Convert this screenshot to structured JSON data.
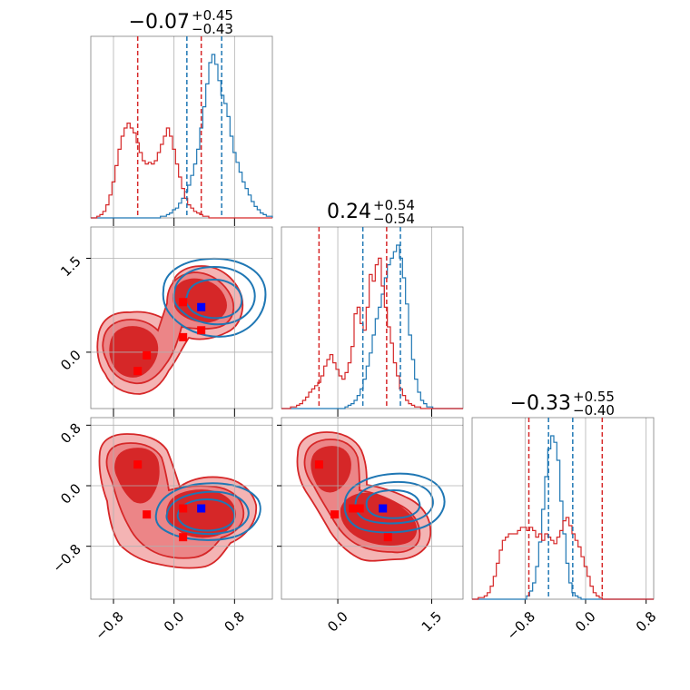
{
  "colors": {
    "red": "#d62728",
    "blue": "#1f77b4",
    "marker_blue": "#0000ff",
    "marker_red": "#ff0000"
  },
  "chart_data": {
    "type": "corner",
    "grid": true,
    "parameters": [
      {
        "title": {
          "value": "−0.07",
          "plus": "+0.45",
          "minus": "−0.43"
        },
        "range": [
          -1.1,
          1.3
        ],
        "ticks": [
          -0.8,
          0.0,
          0.8
        ],
        "tick_labels": [
          "−0.8",
          "0.0",
          "0.8"
        ]
      },
      {
        "title": {
          "value": "0.24",
          "plus": "+0.54",
          "minus": "−0.54"
        },
        "range": [
          -0.9,
          2.0
        ],
        "ticks": [
          0.0,
          1.5
        ],
        "tick_labels": [
          "0.0",
          "1.5"
        ]
      },
      {
        "title": {
          "value": "−0.33",
          "plus": "+0.55",
          "minus": "−0.40"
        },
        "range": [
          -1.5,
          0.9
        ],
        "ticks": [
          -0.8,
          0.0,
          0.8
        ],
        "tick_labels": [
          "−0.8",
          "0.0",
          "0.8"
        ]
      }
    ],
    "quantiles": {
      "red": [
        [
          -0.48,
          0.36
        ],
        [
          -0.3,
          0.78
        ],
        [
          -0.75,
          0.22
        ]
      ],
      "blue": [
        [
          0.17,
          0.63
        ],
        [
          0.4,
          1.0
        ],
        [
          -0.49,
          -0.17
        ]
      ]
    },
    "markers": {
      "blue": [
        0.36,
        0.72,
        -0.3
      ],
      "red": [
        [
          -0.48,
          -0.3,
          0.28
        ],
        [
          -0.36,
          -0.05,
          -0.38
        ],
        [
          0.12,
          0.8,
          -0.68
        ],
        [
          0.36,
          0.35,
          -0.3
        ],
        [
          0.12,
          0.24,
          -0.3
        ]
      ]
    },
    "series": [
      {
        "color": "blue",
        "hist": [
          [
            0,
            0,
            0,
            0,
            0,
            0,
            0,
            0,
            0,
            0,
            0,
            0,
            0,
            0,
            0,
            0,
            0,
            0,
            0,
            0,
            0,
            0,
            0,
            1,
            1,
            2,
            3,
            5,
            6,
            9,
            12,
            16,
            20,
            26,
            33,
            42,
            55,
            68,
            82,
            95,
            100,
            94,
            84,
            75,
            70,
            62,
            50,
            40,
            34,
            28,
            22,
            18,
            14,
            10,
            7,
            5,
            3,
            2,
            1,
            1
          ],
          [
            0,
            0,
            0,
            0,
            0,
            0,
            0,
            0,
            0,
            0,
            0,
            0,
            0,
            0,
            0,
            0,
            0,
            0,
            0,
            0,
            0,
            1,
            2,
            3,
            5,
            8,
            12,
            18,
            26,
            34,
            45,
            55,
            62,
            70,
            80,
            88,
            92,
            96,
            100,
            92,
            80,
            64,
            45,
            30,
            18,
            10,
            5,
            3,
            1,
            1,
            0,
            0,
            0,
            0,
            0,
            0,
            0,
            0,
            0,
            0
          ],
          [
            0,
            0,
            0,
            0,
            0,
            0,
            0,
            0,
            0,
            0,
            0,
            0,
            0,
            0,
            0,
            0,
            0,
            0,
            2,
            5,
            10,
            20,
            35,
            55,
            75,
            92,
            100,
            96,
            85,
            60,
            40,
            22,
            10,
            4,
            2,
            1,
            0,
            0,
            0,
            0,
            0,
            0,
            0,
            0,
            0,
            0,
            0,
            0,
            0,
            0,
            0,
            0,
            0,
            0,
            0,
            0,
            0,
            0,
            0,
            0
          ]
        ]
      },
      {
        "color": "red",
        "hist": [
          [
            0,
            0,
            1,
            2,
            4,
            8,
            14,
            22,
            32,
            42,
            50,
            55,
            58,
            55,
            52,
            46,
            40,
            35,
            33,
            34,
            33,
            35,
            40,
            45,
            50,
            55,
            50,
            42,
            33,
            25,
            18,
            12,
            8,
            6,
            4,
            3,
            2,
            1,
            1,
            0,
            0,
            0,
            0,
            0,
            0,
            0,
            0,
            0,
            0,
            0,
            0,
            0,
            0,
            0,
            0,
            0,
            0,
            0,
            0,
            0
          ],
          [
            0,
            0,
            0,
            1,
            1,
            2,
            3,
            5,
            7,
            10,
            12,
            14,
            16,
            20,
            26,
            30,
            33,
            28,
            24,
            20,
            18,
            22,
            28,
            38,
            58,
            62,
            52,
            48,
            62,
            82,
            78,
            88,
            92,
            75,
            62,
            50,
            40,
            28,
            20,
            12,
            8,
            5,
            3,
            2,
            1,
            1,
            0,
            0,
            0,
            0,
            0,
            0,
            0,
            0,
            0,
            0,
            0,
            0,
            0,
            0
          ],
          [
            0,
            0,
            1,
            1,
            2,
            4,
            8,
            14,
            22,
            30,
            36,
            38,
            40,
            40,
            40,
            42,
            44,
            44,
            42,
            44,
            42,
            38,
            40,
            36,
            40,
            38,
            36,
            34,
            38,
            42,
            48,
            50,
            45,
            40,
            36,
            32,
            26,
            20,
            14,
            8,
            4,
            2,
            1,
            0,
            0,
            0,
            0,
            0,
            0,
            0,
            0,
            0,
            0,
            0,
            0,
            0,
            0,
            0,
            0,
            0
          ]
        ]
      }
    ]
  }
}
